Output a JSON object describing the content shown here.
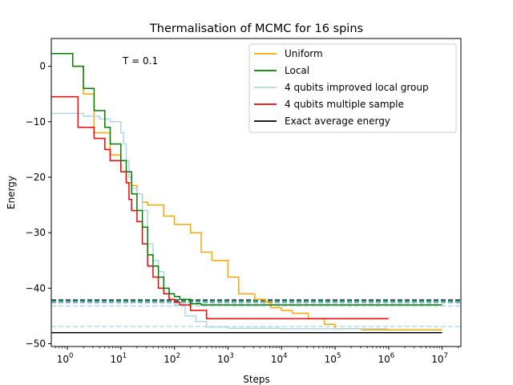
{
  "chart_data": {
    "type": "line",
    "title": "Thermalisation of MCMC for 16 spins",
    "xlabel": "Steps",
    "ylabel": "Energy",
    "xscale": "log",
    "xlim_exp": [
      -0.3,
      7.35
    ],
    "ylim": [
      -50.5,
      5
    ],
    "x_ticks": [
      {
        "base": "10",
        "exp": "0",
        "e": 0
      },
      {
        "base": "10",
        "exp": "1",
        "e": 1
      },
      {
        "base": "10",
        "exp": "2",
        "e": 2
      },
      {
        "base": "10",
        "exp": "3",
        "e": 3
      },
      {
        "base": "10",
        "exp": "4",
        "e": 4
      },
      {
        "base": "10",
        "exp": "5",
        "e": 5
      },
      {
        "base": "10",
        "exp": "6",
        "e": 6
      },
      {
        "base": "10",
        "exp": "7",
        "e": 7
      }
    ],
    "y_ticks": [
      0,
      -10,
      -20,
      -30,
      -40,
      -50
    ],
    "annotation": "T = 0.1",
    "legend_position": "upper right",
    "series": [
      {
        "name": "Uniform",
        "color": "#ffa500",
        "x_exp": [
          -0.3,
          0.0,
          0.1,
          0.3,
          0.5,
          0.8,
          1.0,
          1.1,
          1.2,
          1.3,
          1.4,
          1.5,
          1.6,
          1.8,
          2.0,
          2.3,
          2.5,
          2.7,
          3.0,
          3.2,
          3.5,
          3.7,
          3.8,
          4.0,
          4.2,
          4.5,
          4.8,
          5.0,
          5.5,
          6.0,
          6.5,
          7.0
        ],
        "y": [
          2.3,
          2.3,
          0,
          -5,
          -12,
          -16,
          -19,
          -21,
          -21.5,
          -23,
          -24.5,
          -25,
          -25,
          -27,
          -28.5,
          -30,
          -33.5,
          -35,
          -38,
          -41,
          -42,
          -42.5,
          -43.5,
          -44,
          -44.5,
          -45.5,
          -46.5,
          -47.3,
          -47.5,
          -47.5,
          -47.5,
          -47.5
        ]
      },
      {
        "name": "Local",
        "color": "#008000",
        "x_exp": [
          -0.3,
          0.0,
          0.1,
          0.3,
          0.5,
          0.7,
          0.8,
          1.0,
          1.1,
          1.2,
          1.3,
          1.4,
          1.5,
          1.6,
          1.7,
          1.8,
          1.9,
          2.0,
          2.1,
          2.3,
          2.5,
          3.0,
          3.5,
          4.0,
          5.0,
          6.0,
          6.5,
          7.0
        ],
        "y": [
          2.3,
          2.3,
          0,
          -4,
          -8,
          -11,
          -14,
          -17,
          -19,
          -23,
          -26,
          -29,
          -34,
          -36,
          -38,
          -40,
          -41,
          -41.5,
          -42,
          -42.8,
          -43,
          -43,
          -43,
          -43,
          -43,
          -43,
          -43,
          -43
        ]
      },
      {
        "name": "4 qubits improved local group",
        "color": "#add8e6",
        "x_exp": [
          -0.3,
          0.0,
          0.3,
          0.6,
          0.8,
          1.0,
          1.05,
          1.1,
          1.15,
          1.2,
          1.3,
          1.4,
          1.5,
          1.6,
          1.7,
          1.8,
          1.9,
          2.0,
          2.2,
          2.4,
          2.6,
          3.0,
          4.0,
          5.0,
          6.0
        ],
        "y": [
          -8.5,
          -8.5,
          -9,
          -9.5,
          -10,
          -12,
          -14,
          -17,
          -20,
          -22,
          -23,
          -26,
          -32,
          -35,
          -37,
          -40,
          -42,
          -43,
          -45,
          -46,
          -47,
          -47.2,
          -47.3,
          -47.3,
          -47.3
        ]
      },
      {
        "name": "4 qubits multiple sample",
        "color": "#ff0000",
        "x_exp": [
          -0.3,
          0.0,
          0.2,
          0.5,
          0.7,
          0.8,
          1.0,
          1.1,
          1.15,
          1.2,
          1.3,
          1.4,
          1.5,
          1.6,
          1.7,
          1.8,
          1.9,
          2.0,
          2.1,
          2.3,
          2.6,
          3.0,
          4.0,
          5.0,
          6.0
        ],
        "y": [
          -5.5,
          -5.5,
          -11,
          -13,
          -15,
          -17,
          -19,
          -21,
          -24,
          -26,
          -28,
          -32,
          -36,
          -38,
          -40,
          -41,
          -42,
          -42.5,
          -43,
          -44,
          -45.5,
          -45.5,
          -45.5,
          -45.5,
          -45.5
        ]
      },
      {
        "name": "Exact average energy",
        "color": "#000000",
        "x_exp": [
          -0.3,
          7.0
        ],
        "y": [
          -48,
          -48
        ]
      }
    ],
    "reference_lines": [
      {
        "y": -42.1,
        "color": "#1f4e79",
        "style": "dashed"
      },
      {
        "y": -42.3,
        "color": "#2e8b57",
        "style": "dashed"
      },
      {
        "y": -42.6,
        "color": "#6fa8c4",
        "style": "dashed"
      },
      {
        "y": -43.2,
        "color": "#add8e6",
        "style": "dashed"
      },
      {
        "y": -46.9,
        "color": "#b7dfe8",
        "style": "dashed"
      }
    ]
  }
}
